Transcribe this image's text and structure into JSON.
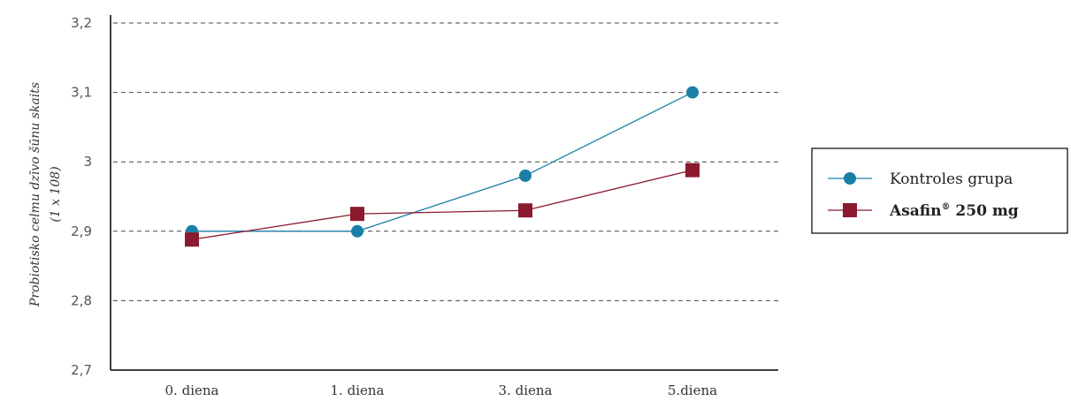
{
  "chart_data": {
    "type": "line",
    "categories": [
      "0. diena",
      "1. diena",
      "3. diena",
      "5.diena"
    ],
    "series": [
      {
        "name": "Kontroles grupa",
        "name_sup": "",
        "name_rest": "",
        "values": [
          2.9,
          2.9,
          2.98,
          3.1
        ],
        "color": "#1a7fa6",
        "marker": "circle",
        "bold": false
      },
      {
        "name": "Asafin",
        "name_sup": "®",
        "name_rest": " 250 mg",
        "values": [
          2.888,
          2.925,
          2.93,
          2.988
        ],
        "color": "#8b1a2e",
        "marker": "square",
        "bold": true
      }
    ],
    "ylabel_lines": [
      "Probiotisko celmu dzīvo šūnu skaits",
      "(1 x 108)"
    ],
    "yticks": [
      "2,7",
      "2,8",
      "2,9",
      "3",
      "3,1",
      "3,2"
    ],
    "ylim": [
      2.7,
      3.2
    ],
    "grid": "dashed-horizontal",
    "legend_position": "right"
  }
}
